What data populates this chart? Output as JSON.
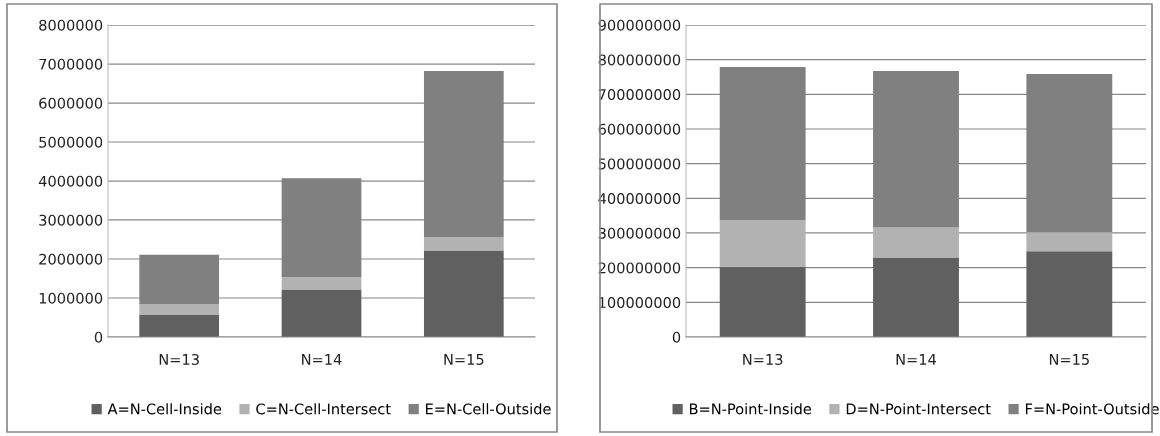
{
  "chart_data": [
    {
      "type": "bar",
      "stacked": true,
      "categories": [
        "N=13",
        "N=14",
        "N=15"
      ],
      "series": [
        {
          "name": "A=N-Cell-Inside",
          "color": "#606060",
          "values": [
            580000,
            1220000,
            2220000
          ]
        },
        {
          "name": "C=N-Cell-Intersect",
          "color": "#b2b2b2",
          "values": [
            260000,
            310000,
            340000
          ]
        },
        {
          "name": "E=N-Cell-Outside",
          "color": "#808080",
          "values": [
            1270000,
            2540000,
            4260000
          ]
        }
      ],
      "ylim": [
        0,
        8000000
      ],
      "yticks": [
        0,
        1000000,
        2000000,
        3000000,
        4000000,
        5000000,
        6000000,
        7000000,
        8000000
      ],
      "grid": "y",
      "legend": "bottom"
    },
    {
      "type": "bar",
      "stacked": true,
      "categories": [
        "N=13",
        "N=14",
        "N=15"
      ],
      "series": [
        {
          "name": "B=N-Point-Inside",
          "color": "#606060",
          "values": [
            203000000,
            229000000,
            247000000
          ]
        },
        {
          "name": "D=N-Point-Intersect",
          "color": "#b2b2b2",
          "values": [
            134000000,
            87000000,
            55000000
          ]
        },
        {
          "name": "F=N-Point-Outside",
          "color": "#808080",
          "values": [
            442000000,
            451000000,
            457000000
          ]
        }
      ],
      "ylim": [
        0,
        900000000
      ],
      "yticks": [
        0,
        100000000,
        200000000,
        300000000,
        400000000,
        500000000,
        600000000,
        700000000,
        800000000,
        900000000
      ],
      "grid": "y",
      "legend": "bottom"
    }
  ]
}
